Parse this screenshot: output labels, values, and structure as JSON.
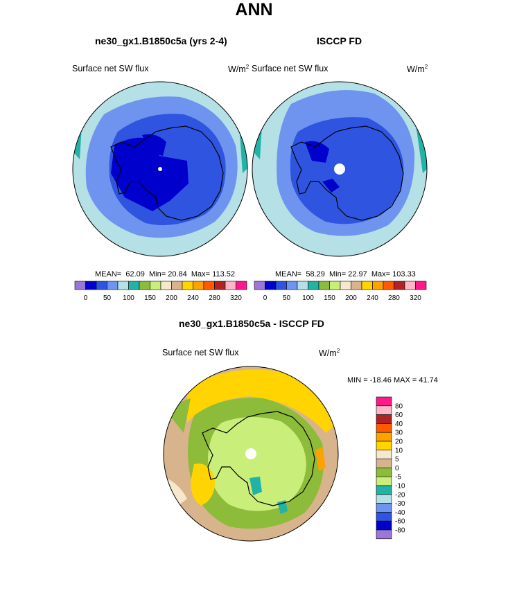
{
  "title": "ANN",
  "panels": [
    {
      "subtitle": "ne30_gx1.B1850c5a (yrs 2-4)",
      "var_label": "Surface net SW flux",
      "units": "W/m",
      "units_sup": "2",
      "stats": {
        "mean_label": "MEAN=",
        "mean": "62.09",
        "min_label": "Min=",
        "min": "20.84",
        "max_label": "Max=",
        "max": "113.52"
      }
    },
    {
      "subtitle": "ISCCP FD",
      "var_label": "Surface net SW flux",
      "units": "W/m",
      "units_sup": "2",
      "stats": {
        "mean_label": "MEAN=",
        "mean": "58.29",
        "min_label": "Min=",
        "min": "22.97",
        "max_label": "Max=",
        "max": "103.33"
      }
    }
  ],
  "diff_panel": {
    "subtitle": "ne30_gx1.B1850c5a - ISCCP FD",
    "var_label": "Surface net SW flux",
    "units": "W/m",
    "units_sup": "2",
    "range_text": "MIN = -18.46 MAX =  41.74"
  },
  "colorbar_top": {
    "colors": [
      "#9b78d8",
      "#0000cc",
      "#2f55e0",
      "#6f94ef",
      "#b4e0e6",
      "#22b3a6",
      "#8dbb3a",
      "#c9ef7a",
      "#f6e8cc",
      "#d8b48c",
      "#ffd400",
      "#ffa200",
      "#ff5a00",
      "#b22222",
      "#ffb6c8",
      "#ff1a8c"
    ],
    "ticks": [
      "0",
      "50",
      "100",
      "150",
      "200",
      "240",
      "280",
      "320"
    ]
  },
  "colorbar_diff": {
    "colors": [
      "#ff1a8c",
      "#ffb6c8",
      "#b22222",
      "#ff5a00",
      "#ffa200",
      "#ffd400",
      "#f6e8cc",
      "#d8b48c",
      "#8dbb3a",
      "#c9ef7a",
      "#22b3a6",
      "#b4e0e6",
      "#6f94ef",
      "#2f55e0",
      "#0000cc",
      "#9b78d8"
    ],
    "ticks": [
      "80",
      "60",
      "40",
      "30",
      "20",
      "10",
      "5",
      "0",
      "-5",
      "-10",
      "-20",
      "-30",
      "-40",
      "-60",
      "-80"
    ]
  },
  "chart_data": [
    {
      "type": "heatmap",
      "projection": "south-polar-stereographic",
      "title": "ne30_gx1.B1850c5a (yrs 2-4)",
      "label": "Surface net SW flux",
      "units": "W/m2",
      "mean": 62.09,
      "min": 20.84,
      "max": 113.52,
      "contour_levels": [
        0,
        25,
        50,
        75,
        100,
        125,
        150,
        175,
        200,
        220,
        240,
        260,
        280,
        300,
        320
      ]
    },
    {
      "type": "heatmap",
      "projection": "south-polar-stereographic",
      "title": "ISCCP FD",
      "label": "Surface net SW flux",
      "units": "W/m2",
      "mean": 58.29,
      "min": 22.97,
      "max": 103.33,
      "contour_levels": [
        0,
        25,
        50,
        75,
        100,
        125,
        150,
        175,
        200,
        220,
        240,
        260,
        280,
        300,
        320
      ]
    },
    {
      "type": "heatmap",
      "projection": "south-polar-stereographic",
      "title": "ne30_gx1.B1850c5a - ISCCP FD",
      "label": "Surface net SW flux",
      "units": "W/m2",
      "min": -18.46,
      "max": 41.74,
      "contour_levels": [
        -80,
        -60,
        -40,
        -30,
        -20,
        -10,
        -5,
        0,
        5,
        10,
        20,
        30,
        40,
        60,
        80
      ]
    }
  ]
}
